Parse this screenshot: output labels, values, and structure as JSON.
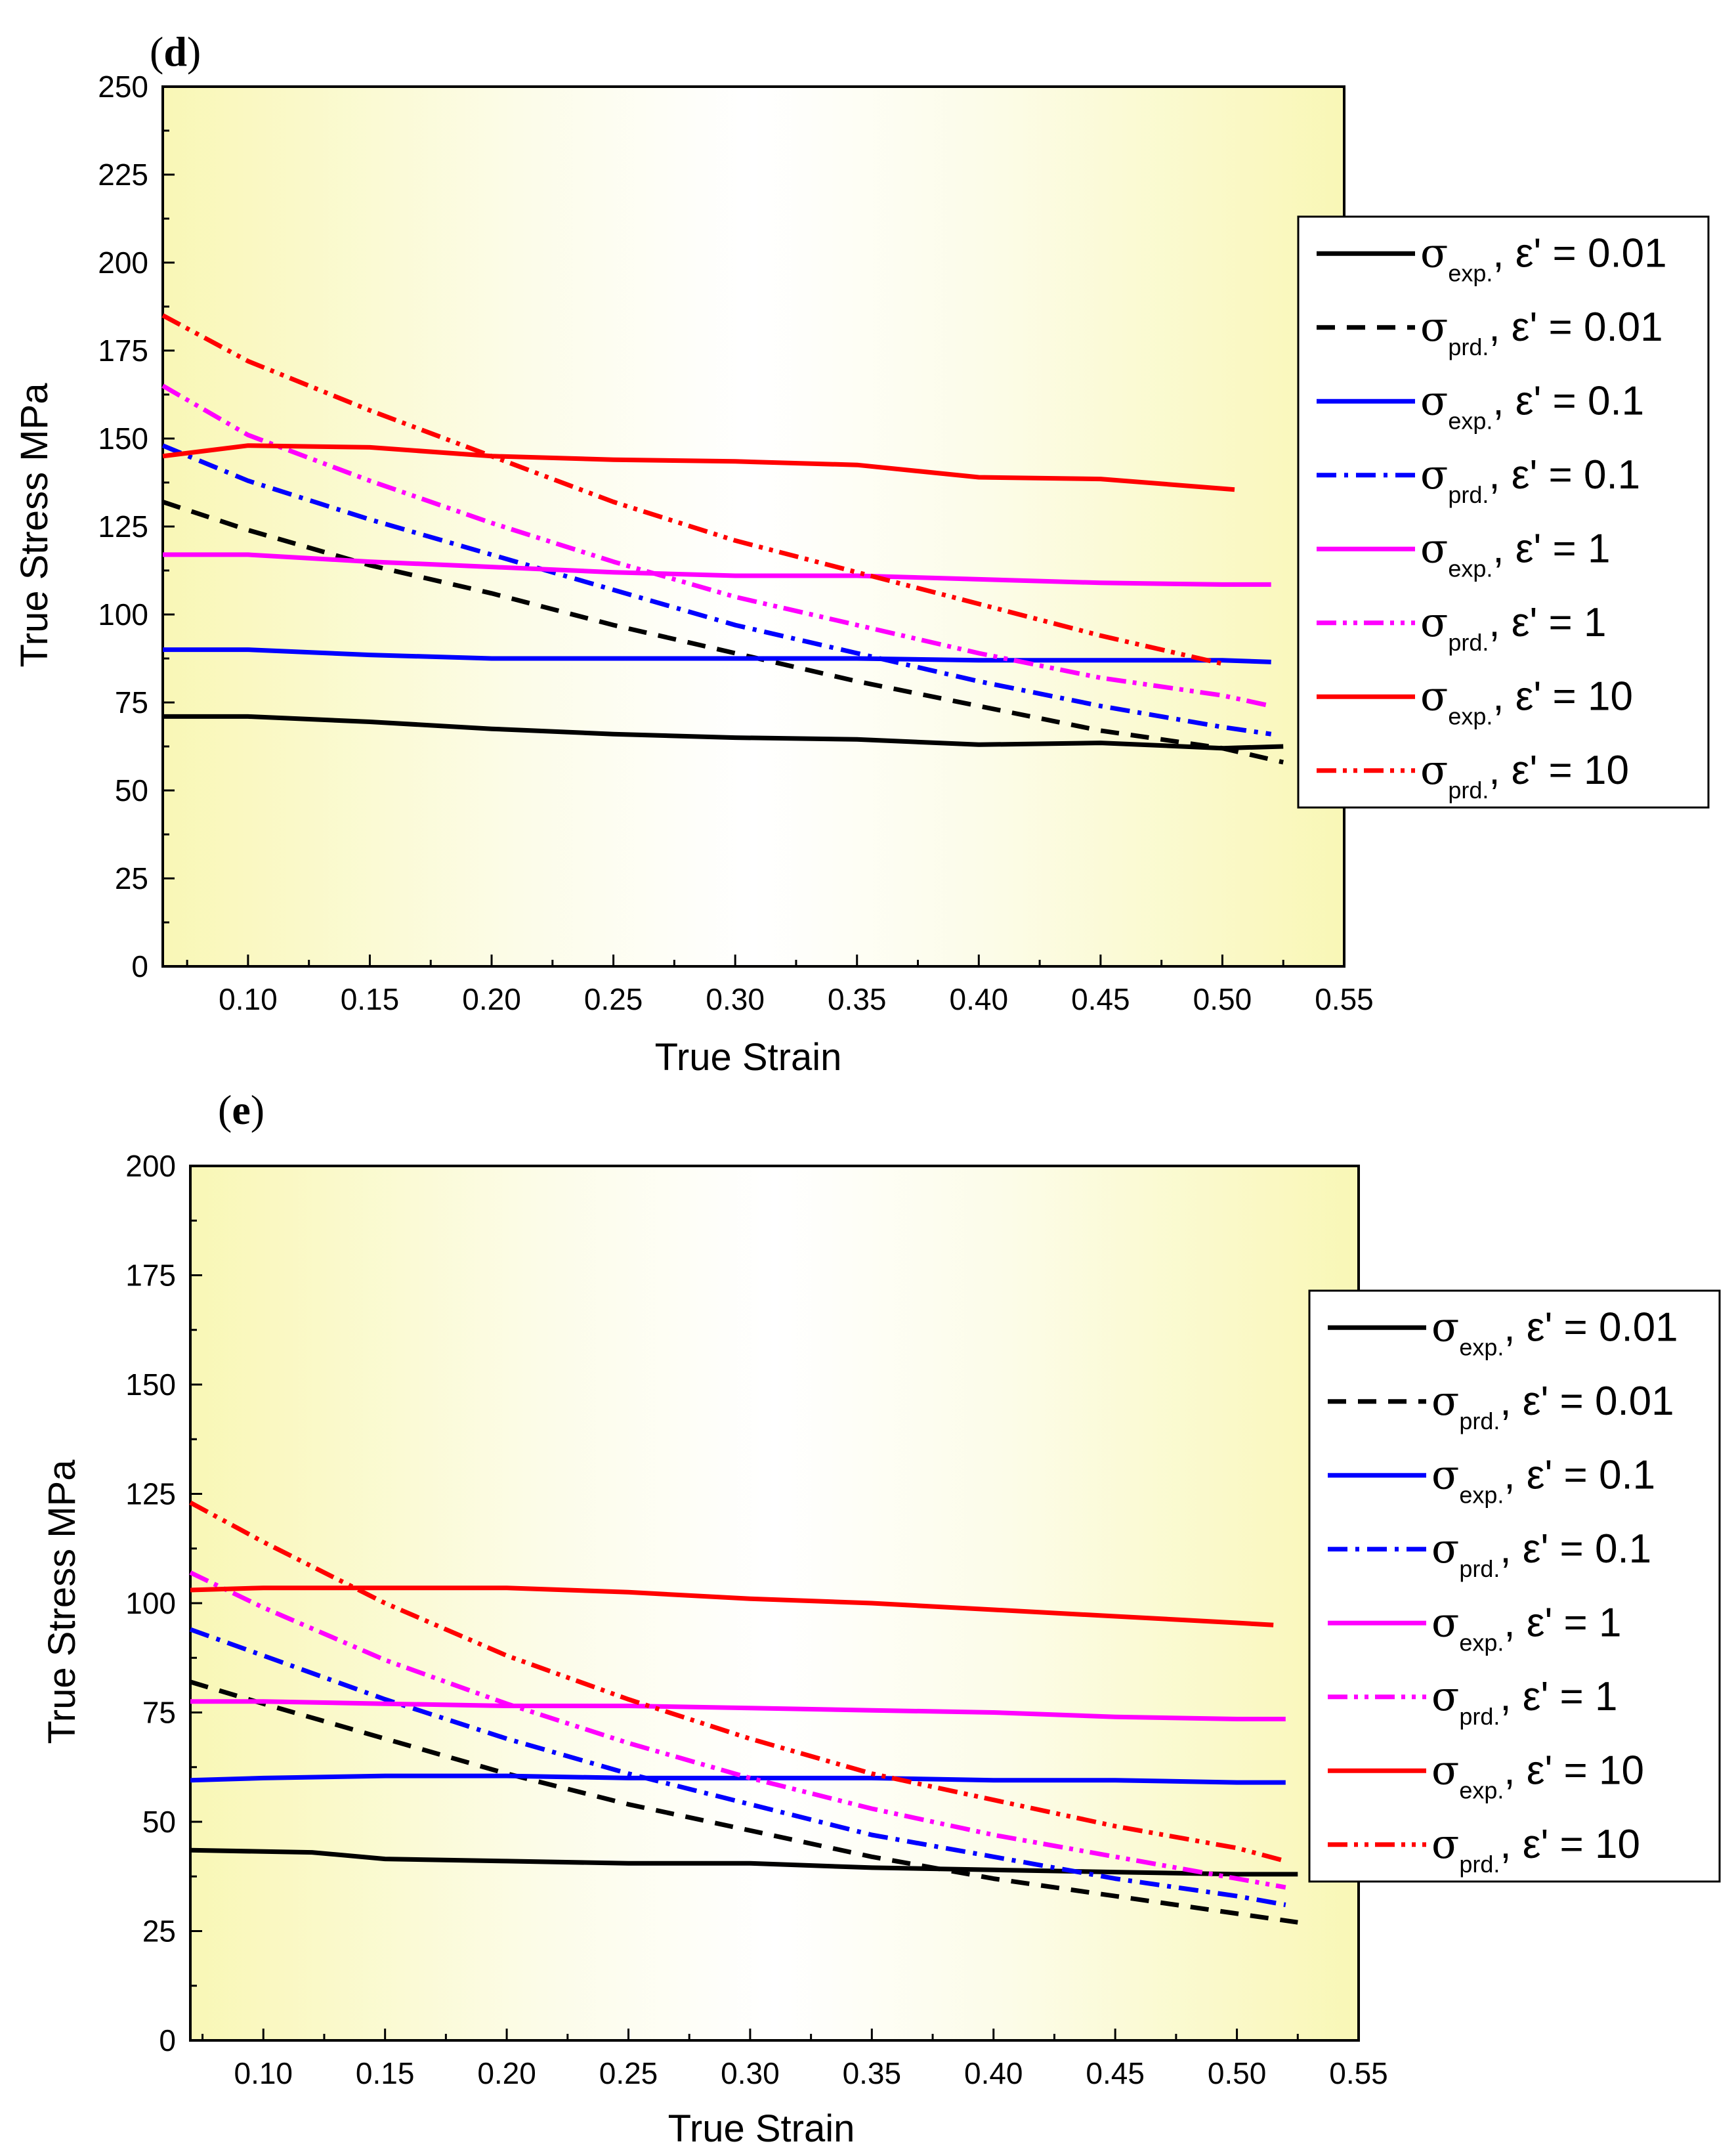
{
  "chart_data": [
    {
      "panel": "(d)",
      "type": "line",
      "xlabel": "True Strain",
      "ylabel": "True Stress (MPa)",
      "xlim": [
        0.065,
        0.55
      ],
      "ylim": [
        0,
        250
      ],
      "xticks": [
        "0.10",
        "0.15",
        "0.20",
        "0.25",
        "0.30",
        "0.35",
        "0.40",
        "0.45",
        "0.50",
        "0.55"
      ],
      "yticks": [
        "0",
        "25",
        "50",
        "75",
        "100",
        "125",
        "150",
        "175",
        "200",
        "225",
        "250"
      ],
      "legend_position": "right",
      "series": [
        {
          "name": "σexp., ε' = 0.01",
          "sym": "σ",
          "sub": "exp.",
          "rate": ", ε' = 0.01",
          "color": "#000000",
          "style": "solid",
          "points": [
            [
              0.065,
              71
            ],
            [
              0.1,
              71
            ],
            [
              0.15,
              69.5
            ],
            [
              0.2,
              67.5
            ],
            [
              0.25,
              66
            ],
            [
              0.3,
              65
            ],
            [
              0.35,
              64.5
            ],
            [
              0.4,
              63
            ],
            [
              0.45,
              63.5
            ],
            [
              0.5,
              62
            ],
            [
              0.525,
              62.5
            ]
          ]
        },
        {
          "name": "σprd., ε' = 0.01",
          "sym": "σ",
          "sub": "prd.",
          "rate": ", ε' = 0.01",
          "color": "#000000",
          "style": "dash",
          "points": [
            [
              0.065,
              132
            ],
            [
              0.1,
              124
            ],
            [
              0.15,
              114
            ],
            [
              0.2,
              106
            ],
            [
              0.25,
              97
            ],
            [
              0.3,
              89
            ],
            [
              0.35,
              81
            ],
            [
              0.4,
              74
            ],
            [
              0.45,
              67
            ],
            [
              0.5,
              62
            ],
            [
              0.525,
              58
            ]
          ]
        },
        {
          "name": "σexp., ε' = 0.1",
          "sym": "σ",
          "sub": "exp.",
          "rate": ", ε' = 0.1",
          "color": "#0000ff",
          "style": "solid",
          "points": [
            [
              0.065,
              90
            ],
            [
              0.1,
              90
            ],
            [
              0.15,
              88.5
            ],
            [
              0.2,
              87.5
            ],
            [
              0.25,
              87.5
            ],
            [
              0.3,
              87.5
            ],
            [
              0.35,
              87.5
            ],
            [
              0.4,
              87
            ],
            [
              0.45,
              87
            ],
            [
              0.5,
              87
            ],
            [
              0.52,
              86.5
            ]
          ]
        },
        {
          "name": "σprd., ε' = 0.1",
          "sym": "σ",
          "sub": "prd.",
          "rate": ", ε' = 0.1",
          "color": "#0000ff",
          "style": "dashdot",
          "points": [
            [
              0.065,
              148
            ],
            [
              0.1,
              138
            ],
            [
              0.15,
              127
            ],
            [
              0.2,
              117
            ],
            [
              0.25,
              107
            ],
            [
              0.3,
              97
            ],
            [
              0.35,
              89
            ],
            [
              0.4,
              81
            ],
            [
              0.45,
              74
            ],
            [
              0.5,
              68
            ],
            [
              0.52,
              66
            ]
          ]
        },
        {
          "name": "σexp., ε' = 1",
          "sym": "σ",
          "sub": "exp.",
          "rate": ", ε' = 1",
          "color": "#ff00ff",
          "style": "solid",
          "points": [
            [
              0.065,
              117
            ],
            [
              0.1,
              117
            ],
            [
              0.15,
              115
            ],
            [
              0.2,
              113.5
            ],
            [
              0.25,
              112
            ],
            [
              0.3,
              111
            ],
            [
              0.35,
              111
            ],
            [
              0.4,
              110
            ],
            [
              0.45,
              109
            ],
            [
              0.5,
              108.5
            ],
            [
              0.52,
              108.5
            ]
          ]
        },
        {
          "name": "σprd., ε' = 1",
          "sym": "σ",
          "sub": "prd.",
          "rate": ", ε' = 1",
          "color": "#ff00ff",
          "style": "dashdotdot",
          "points": [
            [
              0.065,
              165
            ],
            [
              0.1,
              151
            ],
            [
              0.15,
              138
            ],
            [
              0.2,
              126
            ],
            [
              0.25,
              115
            ],
            [
              0.3,
              105
            ],
            [
              0.35,
              97
            ],
            [
              0.4,
              89
            ],
            [
              0.45,
              82
            ],
            [
              0.5,
              77
            ],
            [
              0.52,
              74
            ]
          ]
        },
        {
          "name": "σexp., ε' = 10",
          "sym": "σ",
          "sub": "exp.",
          "rate": ", ε' = 10",
          "color": "#ff0000",
          "style": "solid",
          "points": [
            [
              0.065,
              145
            ],
            [
              0.1,
              148
            ],
            [
              0.15,
              147.5
            ],
            [
              0.2,
              145
            ],
            [
              0.25,
              144
            ],
            [
              0.3,
              143.5
            ],
            [
              0.35,
              142.5
            ],
            [
              0.4,
              139
            ],
            [
              0.45,
              138.5
            ],
            [
              0.505,
              135.5
            ]
          ]
        },
        {
          "name": "σprd., ε' = 10",
          "sym": "σ",
          "sub": "prd.",
          "rate": ", ε' = 10",
          "color": "#ff0000",
          "style": "dashdotdot",
          "points": [
            [
              0.065,
              185
            ],
            [
              0.1,
              172
            ],
            [
              0.15,
              158
            ],
            [
              0.2,
              145
            ],
            [
              0.25,
              132
            ],
            [
              0.3,
              121
            ],
            [
              0.35,
              112
            ],
            [
              0.4,
              103
            ],
            [
              0.45,
              94
            ],
            [
              0.5,
              86
            ]
          ]
        }
      ]
    },
    {
      "panel": "(e)",
      "type": "line",
      "xlabel": "True Strain",
      "ylabel": "True Stress (MPa)",
      "xlim": [
        0.07,
        0.55
      ],
      "ylim": [
        0,
        200
      ],
      "xticks": [
        "0.10",
        "0.15",
        "0.20",
        "0.25",
        "0.30",
        "0.35",
        "0.40",
        "0.45",
        "0.50",
        "0.55"
      ],
      "yticks": [
        "0",
        "25",
        "50",
        "75",
        "100",
        "125",
        "150",
        "175",
        "200"
      ],
      "legend_position": "right",
      "series": [
        {
          "name": "σexp., ε' = 0.01",
          "sym": "σ",
          "sub": "exp.",
          "rate": ", ε' = 0.01",
          "color": "#000000",
          "style": "solid",
          "points": [
            [
              0.07,
              43.5
            ],
            [
              0.12,
              43
            ],
            [
              0.15,
              41.5
            ],
            [
              0.2,
              41
            ],
            [
              0.25,
              40.5
            ],
            [
              0.3,
              40.5
            ],
            [
              0.35,
              39.5
            ],
            [
              0.4,
              39
            ],
            [
              0.45,
              38.5
            ],
            [
              0.5,
              38
            ],
            [
              0.525,
              38
            ]
          ]
        },
        {
          "name": "σprd., ε' = 0.01",
          "sym": "σ",
          "sub": "prd.",
          "rate": ", ε' = 0.01",
          "color": "#000000",
          "style": "dash",
          "points": [
            [
              0.07,
              82
            ],
            [
              0.1,
              77
            ],
            [
              0.15,
              69
            ],
            [
              0.2,
              61
            ],
            [
              0.25,
              54
            ],
            [
              0.3,
              48
            ],
            [
              0.35,
              42
            ],
            [
              0.4,
              37
            ],
            [
              0.45,
              33
            ],
            [
              0.5,
              29
            ],
            [
              0.525,
              27
            ]
          ]
        },
        {
          "name": "σexp., ε' = 0.1",
          "sym": "σ",
          "sub": "exp.",
          "rate": ", ε' = 0.1",
          "color": "#0000ff",
          "style": "solid",
          "points": [
            [
              0.07,
              59.5
            ],
            [
              0.1,
              60
            ],
            [
              0.15,
              60.5
            ],
            [
              0.2,
              60.5
            ],
            [
              0.25,
              60
            ],
            [
              0.3,
              60
            ],
            [
              0.35,
              60
            ],
            [
              0.4,
              59.5
            ],
            [
              0.45,
              59.5
            ],
            [
              0.5,
              59
            ],
            [
              0.52,
              59
            ]
          ]
        },
        {
          "name": "σprd., ε' = 0.1",
          "sym": "σ",
          "sub": "prd.",
          "rate": ", ε' = 0.1",
          "color": "#0000ff",
          "style": "dashdot",
          "points": [
            [
              0.07,
              94
            ],
            [
              0.1,
              88
            ],
            [
              0.15,
              78
            ],
            [
              0.2,
              69
            ],
            [
              0.25,
              61
            ],
            [
              0.3,
              54
            ],
            [
              0.35,
              47
            ],
            [
              0.4,
              42
            ],
            [
              0.45,
              37
            ],
            [
              0.5,
              33
            ],
            [
              0.52,
              31
            ]
          ]
        },
        {
          "name": "σexp., ε' = 1",
          "sym": "σ",
          "sub": "exp.",
          "rate": ", ε' = 1",
          "color": "#ff00ff",
          "style": "solid",
          "points": [
            [
              0.07,
              77.5
            ],
            [
              0.1,
              77.5
            ],
            [
              0.15,
              77
            ],
            [
              0.2,
              76.5
            ],
            [
              0.25,
              76.5
            ],
            [
              0.3,
              76
            ],
            [
              0.35,
              75.5
            ],
            [
              0.4,
              75
            ],
            [
              0.45,
              74
            ],
            [
              0.5,
              73.5
            ],
            [
              0.52,
              73.5
            ]
          ]
        },
        {
          "name": "σprd., ε' = 1",
          "sym": "σ",
          "sub": "prd.",
          "rate": ", ε' = 1",
          "color": "#ff00ff",
          "style": "dashdotdot",
          "points": [
            [
              0.07,
              107
            ],
            [
              0.1,
              99
            ],
            [
              0.15,
              87
            ],
            [
              0.2,
              77
            ],
            [
              0.25,
              68
            ],
            [
              0.3,
              60
            ],
            [
              0.35,
              53
            ],
            [
              0.4,
              47
            ],
            [
              0.45,
              42
            ],
            [
              0.5,
              37
            ],
            [
              0.52,
              35
            ]
          ]
        },
        {
          "name": "σexp., ε' = 10",
          "sym": "σ",
          "sub": "exp.",
          "rate": ", ε' = 10",
          "color": "#ff0000",
          "style": "solid",
          "points": [
            [
              0.07,
              103
            ],
            [
              0.1,
              103.5
            ],
            [
              0.15,
              103.5
            ],
            [
              0.2,
              103.5
            ],
            [
              0.25,
              102.5
            ],
            [
              0.3,
              101
            ],
            [
              0.35,
              100
            ],
            [
              0.4,
              98.5
            ],
            [
              0.45,
              97
            ],
            [
              0.5,
              95.5
            ],
            [
              0.515,
              95
            ]
          ]
        },
        {
          "name": "σprd., ε' = 10",
          "sym": "σ",
          "sub": "prd.",
          "rate": ", ε' = 10",
          "color": "#ff0000",
          "style": "dashdotdot",
          "points": [
            [
              0.07,
              123
            ],
            [
              0.1,
              114
            ],
            [
              0.15,
              100
            ],
            [
              0.2,
              88
            ],
            [
              0.25,
              78
            ],
            [
              0.3,
              69
            ],
            [
              0.35,
              61
            ],
            [
              0.4,
              55
            ],
            [
              0.45,
              49
            ],
            [
              0.5,
              44
            ],
            [
              0.52,
              41
            ]
          ]
        }
      ]
    }
  ]
}
